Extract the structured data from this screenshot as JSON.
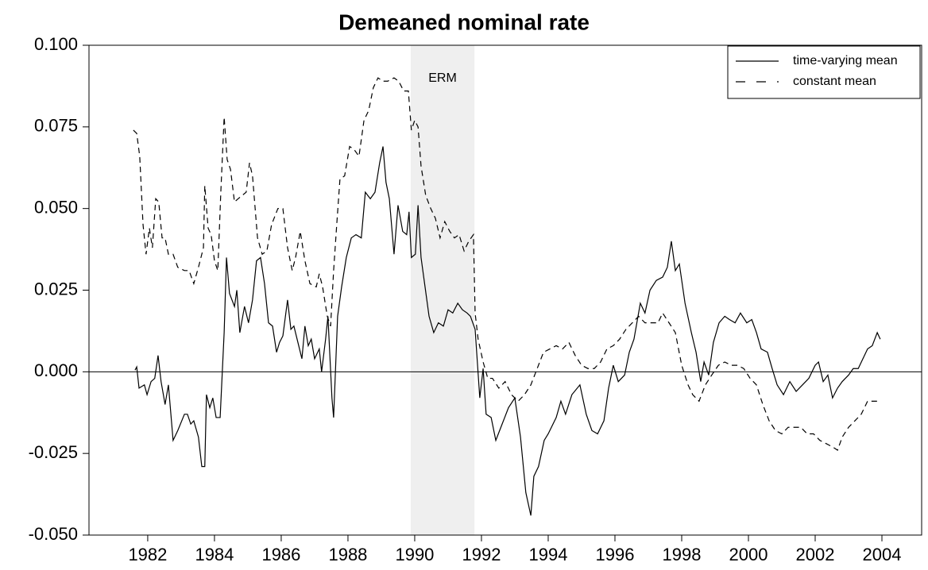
{
  "chart_data": {
    "type": "line",
    "title": "Demeaned nominal rate",
    "xlim": [
      1980.24,
      2005.19
    ],
    "xticks": [
      1982,
      1984,
      1986,
      1988,
      1990,
      1992,
      1994,
      1996,
      1998,
      2000,
      2002,
      2004
    ],
    "ylim": [
      -0.05,
      0.1
    ],
    "yticks": [
      {
        "value": -0.05,
        "label": "-0.050"
      },
      {
        "value": -0.025,
        "label": "-0.025"
      },
      {
        "value": 0,
        "label": "0.000"
      },
      {
        "value": 0.025,
        "label": "0.025"
      },
      {
        "value": 0.05,
        "label": "0.050"
      },
      {
        "value": 0.075,
        "label": "0.075"
      },
      {
        "value": 0.1,
        "label": "0.100"
      }
    ],
    "hline": 0,
    "shaded_region": {
      "x": [
        1989.88,
        1991.79
      ],
      "label": "ERM",
      "color": "#efefef"
    },
    "legend": "top-right",
    "series": [
      {
        "name": "time-varying mean",
        "color": "#000000",
        "dash": "solid",
        "x": [
          1981.62,
          1981.67,
          1981.74,
          1981.9,
          1981.98,
          1982.1,
          1982.21,
          1982.31,
          1982.4,
          1982.52,
          1982.62,
          1982.76,
          1982.9,
          1983.1,
          1983.19,
          1983.29,
          1983.38,
          1983.52,
          1983.62,
          1983.71,
          1983.76,
          1983.86,
          1983.95,
          1984.05,
          1984.17,
          1984.29,
          1984.36,
          1984.45,
          1984.6,
          1984.67,
          1984.76,
          1984.9,
          1985.02,
          1985.14,
          1985.26,
          1985.38,
          1985.5,
          1985.62,
          1985.74,
          1985.86,
          1985.95,
          1986.05,
          1986.19,
          1986.29,
          1986.38,
          1986.5,
          1986.62,
          1986.71,
          1986.81,
          1986.9,
          1987.0,
          1987.14,
          1987.21,
          1987.33,
          1987.4,
          1987.52,
          1987.57,
          1987.69,
          1987.81,
          1987.95,
          1988.1,
          1988.24,
          1988.4,
          1988.52,
          1988.67,
          1988.81,
          1988.95,
          1989.05,
          1989.14,
          1989.24,
          1989.38,
          1989.5,
          1989.64,
          1989.76,
          1989.83,
          1989.9,
          1990.02,
          1990.1,
          1990.19,
          1990.31,
          1990.43,
          1990.57,
          1990.71,
          1990.86,
          1991.0,
          1991.14,
          1991.29,
          1991.43,
          1991.57,
          1991.67,
          1991.81,
          1991.95,
          1992.05,
          1992.14,
          1992.29,
          1992.43,
          1992.62,
          1992.81,
          1993.0,
          1993.17,
          1993.33,
          1993.48,
          1993.57,
          1993.71,
          1993.88,
          1994.0,
          1994.24,
          1994.38,
          1994.52,
          1994.71,
          1994.95,
          1995.14,
          1995.31,
          1995.48,
          1995.67,
          1995.81,
          1995.95,
          1996.1,
          1996.29,
          1996.43,
          1996.57,
          1996.76,
          1996.9,
          1997.05,
          1997.24,
          1997.43,
          1997.57,
          1997.69,
          1997.81,
          1997.93,
          1998.1,
          1998.29,
          1998.43,
          1998.57,
          1998.67,
          1998.81,
          1998.95,
          1999.12,
          1999.29,
          1999.43,
          1999.6,
          1999.76,
          1999.95,
          2000.1,
          2000.24,
          2000.38,
          2000.57,
          2000.71,
          2000.86,
          2001.05,
          2001.24,
          2001.43,
          2001.62,
          2001.81,
          2002.0,
          2002.1,
          2002.24,
          2002.38,
          2002.52,
          2002.67,
          2002.81,
          2003.0,
          2003.14,
          2003.29,
          2003.43,
          2003.57,
          2003.71,
          2003.86,
          2003.95
        ],
        "values": [
          0.0005,
          0.0015,
          -0.005,
          -0.004,
          -0.007,
          -0.003,
          -0.002,
          0.005,
          -0.003,
          -0.01,
          -0.004,
          -0.021,
          -0.018,
          -0.013,
          -0.013,
          -0.016,
          -0.015,
          -0.02,
          -0.029,
          -0.029,
          -0.007,
          -0.011,
          -0.008,
          -0.014,
          -0.014,
          0.012,
          0.035,
          0.024,
          0.02,
          0.025,
          0.012,
          0.02,
          0.015,
          0.022,
          0.034,
          0.035,
          0.027,
          0.015,
          0.014,
          0.006,
          0.009,
          0.011,
          0.022,
          0.013,
          0.014,
          0.009,
          0.004,
          0.014,
          0.008,
          0.01,
          0.004,
          0.007,
          0.0,
          0.01,
          0.017,
          -0.008,
          -0.014,
          0.017,
          0.026,
          0.035,
          0.041,
          0.042,
          0.041,
          0.055,
          0.053,
          0.055,
          0.064,
          0.069,
          0.058,
          0.053,
          0.036,
          0.051,
          0.043,
          0.042,
          0.049,
          0.035,
          0.036,
          0.051,
          0.035,
          0.026,
          0.017,
          0.012,
          0.015,
          0.014,
          0.019,
          0.018,
          0.021,
          0.019,
          0.018,
          0.017,
          0.013,
          -0.008,
          0.001,
          -0.013,
          -0.014,
          -0.021,
          -0.016,
          -0.011,
          -0.008,
          -0.02,
          -0.037,
          -0.044,
          -0.032,
          -0.029,
          -0.021,
          -0.019,
          -0.014,
          -0.009,
          -0.013,
          -0.007,
          -0.004,
          -0.013,
          -0.018,
          -0.019,
          -0.015,
          -0.005,
          0.002,
          -0.003,
          -0.001,
          0.006,
          0.01,
          0.021,
          0.018,
          0.025,
          0.028,
          0.029,
          0.032,
          0.04,
          0.031,
          0.033,
          0.021,
          0.012,
          0.006,
          -0.003,
          0.003,
          -0.001,
          0.009,
          0.015,
          0.017,
          0.016,
          0.015,
          0.018,
          0.015,
          0.016,
          0.012,
          0.007,
          0.006,
          0.001,
          -0.004,
          -0.007,
          -0.003,
          -0.006,
          -0.004,
          -0.002,
          0.002,
          0.003,
          -0.003,
          -0.001,
          -0.008,
          -0.005,
          -0.003,
          -0.001,
          0.001,
          0.001,
          0.004,
          0.007,
          0.008,
          0.012,
          0.01
        ]
      },
      {
        "name": "constant mean",
        "color": "#000000",
        "dash": "dashed",
        "x": [
          1981.57,
          1981.67,
          1981.76,
          1981.86,
          1981.95,
          1982.05,
          1982.14,
          1982.24,
          1982.33,
          1982.43,
          1982.52,
          1982.62,
          1982.76,
          1982.9,
          1983.1,
          1983.24,
          1983.38,
          1983.52,
          1983.67,
          1983.71,
          1983.81,
          1983.9,
          1984.0,
          1984.1,
          1984.19,
          1984.29,
          1984.38,
          1984.48,
          1984.6,
          1984.71,
          1984.83,
          1984.95,
          1985.05,
          1985.14,
          1985.29,
          1985.43,
          1985.57,
          1985.71,
          1985.9,
          1986.05,
          1986.19,
          1986.33,
          1986.43,
          1986.57,
          1986.71,
          1986.86,
          1987.05,
          1987.14,
          1987.24,
          1987.38,
          1987.48,
          1987.57,
          1987.67,
          1987.76,
          1987.9,
          1988.05,
          1988.19,
          1988.33,
          1988.48,
          1988.62,
          1988.76,
          1988.9,
          1989.05,
          1989.19,
          1989.38,
          1989.52,
          1989.67,
          1989.81,
          1989.9,
          1990.0,
          1990.1,
          1990.19,
          1990.33,
          1990.48,
          1990.62,
          1990.76,
          1990.9,
          1991.05,
          1991.19,
          1991.33,
          1991.48,
          1991.62,
          1991.76,
          1991.81,
          1991.9,
          1992.05,
          1992.19,
          1992.33,
          1992.52,
          1992.71,
          1992.9,
          1993.1,
          1993.29,
          1993.48,
          1993.67,
          1993.86,
          1994.05,
          1994.24,
          1994.43,
          1994.62,
          1994.81,
          1995.0,
          1995.19,
          1995.38,
          1995.57,
          1995.76,
          1995.95,
          1996.14,
          1996.33,
          1996.52,
          1996.71,
          1996.9,
          1997.1,
          1997.29,
          1997.43,
          1997.62,
          1997.81,
          1998.0,
          1998.19,
          1998.33,
          1998.52,
          1998.71,
          1998.9,
          1999.1,
          1999.29,
          1999.48,
          1999.67,
          1999.86,
          2000.05,
          2000.24,
          2000.43,
          2000.62,
          2000.81,
          2001.0,
          2001.19,
          2001.38,
          2001.57,
          2001.76,
          2001.95,
          2002.14,
          2002.33,
          2002.52,
          2002.67,
          2002.81,
          2003.0,
          2003.19,
          2003.38,
          2003.57,
          2003.76,
          2003.95
        ],
        "values": [
          0.074,
          0.073,
          0.066,
          0.045,
          0.036,
          0.044,
          0.038,
          0.053,
          0.052,
          0.041,
          0.041,
          0.036,
          0.036,
          0.032,
          0.031,
          0.031,
          0.027,
          0.032,
          0.038,
          0.057,
          0.044,
          0.042,
          0.034,
          0.031,
          0.055,
          0.078,
          0.065,
          0.062,
          0.052,
          0.053,
          0.054,
          0.055,
          0.064,
          0.06,
          0.041,
          0.036,
          0.037,
          0.045,
          0.05,
          0.05,
          0.038,
          0.031,
          0.035,
          0.043,
          0.034,
          0.027,
          0.026,
          0.03,
          0.026,
          0.017,
          0.014,
          0.031,
          0.046,
          0.059,
          0.06,
          0.069,
          0.068,
          0.066,
          0.077,
          0.08,
          0.087,
          0.09,
          0.089,
          0.089,
          0.09,
          0.089,
          0.086,
          0.086,
          0.074,
          0.077,
          0.075,
          0.063,
          0.054,
          0.05,
          0.047,
          0.041,
          0.046,
          0.043,
          0.041,
          0.042,
          0.037,
          0.04,
          0.042,
          0.018,
          0.01,
          0.003,
          -0.002,
          -0.002,
          -0.005,
          -0.003,
          -0.007,
          -0.009,
          -0.007,
          -0.004,
          0.001,
          0.006,
          0.007,
          0.008,
          0.007,
          0.009,
          0.005,
          0.002,
          0.001,
          0.001,
          0.003,
          0.007,
          0.008,
          0.01,
          0.013,
          0.015,
          0.017,
          0.015,
          0.015,
          0.015,
          0.018,
          0.015,
          0.012,
          0.002,
          -0.004,
          -0.007,
          -0.009,
          -0.004,
          -0.001,
          0.002,
          0.003,
          0.002,
          0.002,
          0.001,
          -0.002,
          -0.004,
          -0.01,
          -0.015,
          -0.018,
          -0.019,
          -0.017,
          -0.017,
          -0.017,
          -0.019,
          -0.019,
          -0.021,
          -0.022,
          -0.023,
          -0.024,
          -0.02,
          -0.017,
          -0.015,
          -0.013,
          -0.009,
          -0.009,
          -0.009
        ]
      }
    ]
  }
}
